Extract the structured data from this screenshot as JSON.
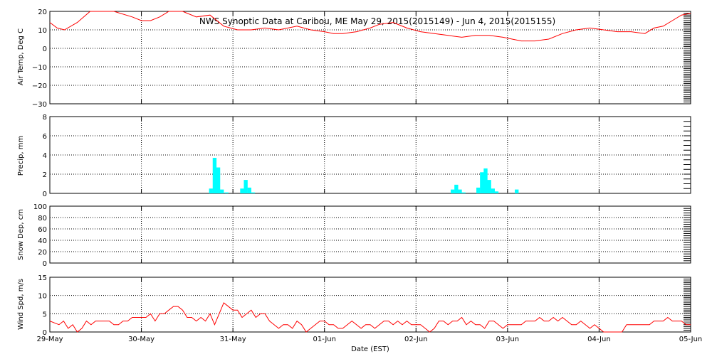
{
  "title": "NWS Synoptic Data at Caribou, ME   May 29, 2015(2015149) - Jun  4, 2015(2015155)",
  "colors": {
    "background": "#ffffff",
    "axes": "#000000",
    "temp_line": "#ff0000",
    "wind_line": "#ff0000",
    "precip_bars": "#00ffff"
  },
  "chart_data": [
    {
      "type": "line",
      "ylabel": "Air Temp, Deg C",
      "ylim": [
        -30,
        20
      ],
      "yticks": [
        "20",
        "10",
        "0",
        "−10",
        "−20",
        "−30"
      ],
      "grid": true,
      "xlim_days": [
        0,
        7
      ],
      "x_days": [
        0,
        0.08,
        0.16,
        0.3,
        0.44,
        0.55,
        0.7,
        0.9,
        1.0,
        1.1,
        1.2,
        1.3,
        1.45,
        1.6,
        1.75,
        1.9,
        2.05,
        2.2,
        2.35,
        2.5,
        2.7,
        2.85,
        3.0,
        3.1,
        3.2,
        3.35,
        3.5,
        3.6,
        3.75,
        3.9,
        4.05,
        4.2,
        4.35,
        4.5,
        4.65,
        4.8,
        4.95,
        5.05,
        5.15,
        5.3,
        5.45,
        5.6,
        5.75,
        5.9,
        6.05,
        6.2,
        6.35,
        6.5,
        6.6,
        6.7,
        6.8,
        6.9,
        7.0
      ],
      "values": [
        14,
        11,
        10,
        14,
        20,
        22,
        20,
        17,
        15,
        15,
        17,
        20,
        20,
        17,
        18,
        12,
        10,
        10,
        11,
        10,
        12,
        10,
        9,
        8,
        8,
        9,
        11,
        13,
        14,
        11,
        9,
        8,
        7,
        6,
        7,
        7,
        6,
        5,
        4,
        4,
        5,
        8,
        10,
        11,
        10,
        9,
        9,
        8,
        11,
        12,
        15,
        18,
        19
      ],
      "extra_values": [
        16,
        12
      ]
    },
    {
      "type": "bar",
      "ylabel": "Precip, mm",
      "ylim": [
        0,
        8
      ],
      "yticks": [
        "8",
        "6",
        "4",
        "2",
        "0"
      ],
      "grid": true,
      "xlim_days": [
        0,
        7
      ],
      "x_days": [
        1.76,
        1.8,
        1.84,
        1.88,
        1.93,
        2.1,
        2.14,
        2.18,
        2.22,
        4.4,
        4.44,
        4.48,
        4.52,
        4.68,
        4.72,
        4.76,
        4.8,
        4.84,
        4.88,
        5.1
      ],
      "values": [
        0.5,
        3.7,
        2.7,
        0.4,
        0.1,
        0.5,
        1.4,
        0.6,
        0.1,
        0.4,
        0.9,
        0.4,
        0.1,
        0.6,
        2.2,
        2.6,
        1.4,
        0.5,
        0.2,
        0.4
      ]
    },
    {
      "type": "line",
      "ylabel": "Snow Dep, cm",
      "ylim": [
        0,
        100
      ],
      "yticks": [
        "100",
        "80",
        "60",
        "40",
        "20",
        "0"
      ],
      "grid": true,
      "xlim_days": [
        0,
        7
      ],
      "x_days": [],
      "values": []
    },
    {
      "type": "line",
      "ylabel": "Wind Spd, m/s",
      "xlabel": "Date (EST)",
      "ylim": [
        0,
        15
      ],
      "yticks": [
        "15",
        "10",
        "5",
        "0"
      ],
      "grid": true,
      "xlim_days": [
        0,
        7
      ],
      "x_days": [
        0,
        0.05,
        0.1,
        0.15,
        0.2,
        0.25,
        0.3,
        0.35,
        0.4,
        0.45,
        0.5,
        0.55,
        0.6,
        0.65,
        0.7,
        0.75,
        0.8,
        0.85,
        0.9,
        0.95,
        1.0,
        1.05,
        1.1,
        1.15,
        1.2,
        1.25,
        1.3,
        1.35,
        1.4,
        1.45,
        1.5,
        1.55,
        1.6,
        1.65,
        1.7,
        1.75,
        1.8,
        1.85,
        1.9,
        1.95,
        2.0,
        2.05,
        2.1,
        2.15,
        2.2,
        2.25,
        2.3,
        2.35,
        2.4,
        2.45,
        2.5,
        2.55,
        2.6,
        2.65,
        2.7,
        2.75,
        2.8,
        2.85,
        2.9,
        2.95,
        3.0,
        3.05,
        3.1,
        3.15,
        3.2,
        3.25,
        3.3,
        3.35,
        3.4,
        3.45,
        3.5,
        3.55,
        3.6,
        3.65,
        3.7,
        3.75,
        3.8,
        3.85,
        3.9,
        3.95,
        4.0,
        4.05,
        4.1,
        4.15,
        4.2,
        4.25,
        4.3,
        4.35,
        4.4,
        4.45,
        4.5,
        4.55,
        4.6,
        4.65,
        4.7,
        4.75,
        4.8,
        4.85,
        4.9,
        4.95,
        5.0,
        5.05,
        5.1,
        5.15,
        5.2,
        5.25,
        5.3,
        5.35,
        5.4,
        5.45,
        5.5,
        5.55,
        5.6,
        5.65,
        5.7,
        5.75,
        5.8,
        5.85,
        5.9,
        5.95,
        6.0,
        6.05,
        6.1,
        6.15,
        6.2,
        6.25,
        6.3,
        6.35,
        6.4,
        6.45,
        6.5,
        6.55,
        6.6,
        6.65,
        6.7,
        6.75,
        6.8,
        6.85,
        6.9,
        6.95,
        7.0
      ],
      "values": [
        3,
        2.5,
        2,
        3,
        1,
        2,
        0,
        1,
        3,
        2,
        3,
        3,
        3,
        3,
        2,
        2,
        3,
        3,
        4,
        4,
        4,
        4,
        5,
        3,
        5,
        5,
        6,
        7,
        7,
        6,
        4,
        4,
        3,
        4,
        3,
        5,
        2,
        5,
        8,
        7,
        6,
        6,
        4,
        5,
        6,
        4,
        5,
        5,
        3,
        2,
        1,
        2,
        2,
        1,
        3,
        2,
        0,
        1,
        2,
        3,
        3,
        2,
        2,
        1,
        1,
        2,
        3,
        2,
        1,
        2,
        2,
        1,
        2,
        3,
        3,
        2,
        3,
        2,
        3,
        2,
        2,
        2,
        1,
        0,
        1,
        3,
        3,
        2,
        3,
        3,
        4,
        2,
        3,
        2,
        2,
        1,
        3,
        3,
        2,
        1,
        2,
        2,
        2,
        2,
        3,
        3,
        3,
        4,
        3,
        3,
        4,
        3,
        4,
        3,
        2,
        2,
        3,
        2,
        1,
        2,
        1,
        0,
        0,
        0,
        0,
        0,
        2,
        2,
        2,
        2,
        2,
        2,
        3,
        3,
        3,
        4,
        3,
        3,
        3,
        2,
        2
      ]
    }
  ],
  "x_tick_labels": [
    "29-May",
    "30-May",
    "31-May",
    "01-Jun",
    "02-Jun",
    "03-Jun",
    "04-Jun",
    "05-Jun"
  ]
}
